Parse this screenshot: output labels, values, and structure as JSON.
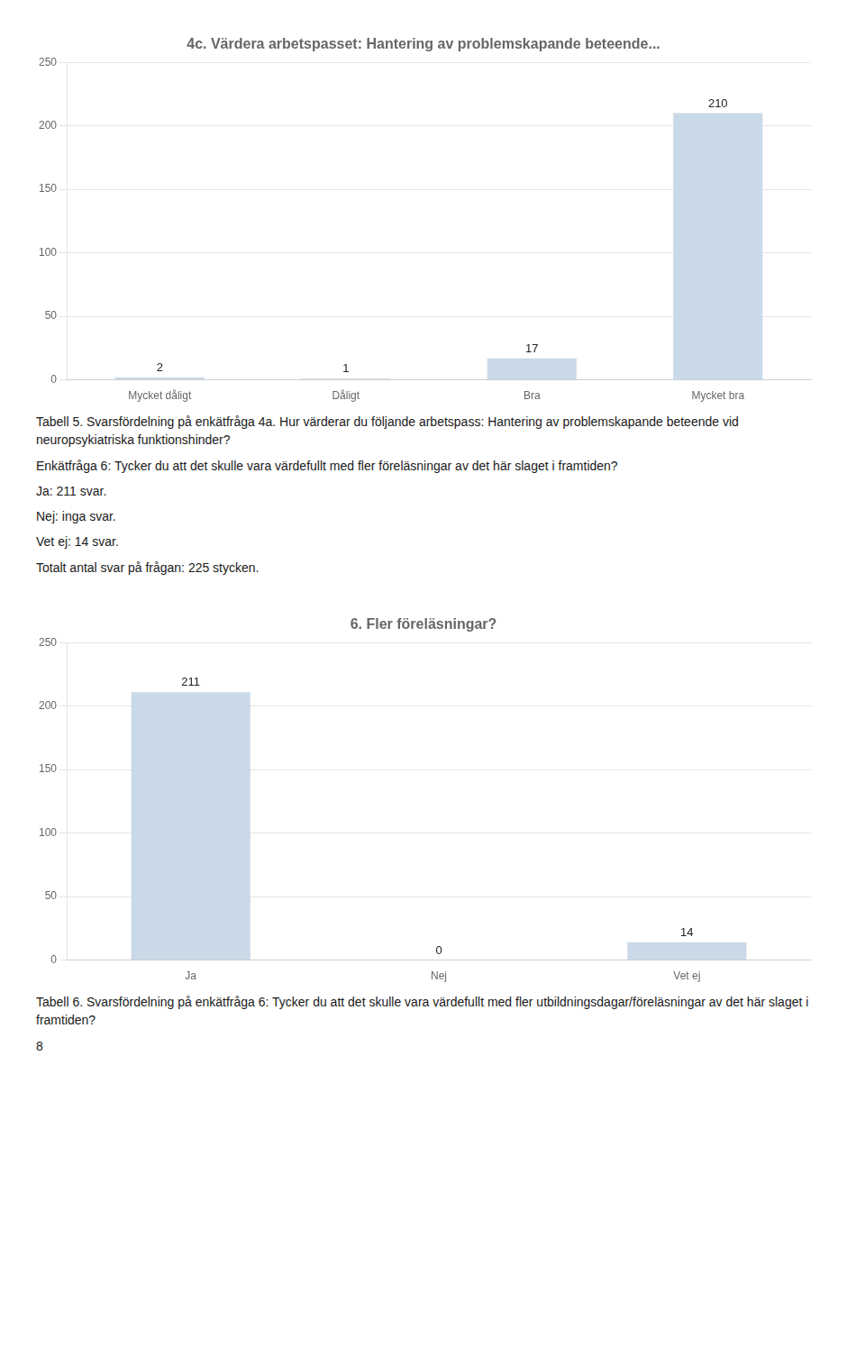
{
  "chart_data": [
    {
      "type": "bar",
      "title": "4c. Värdera arbetspasset: Hantering av problemskapande beteende...",
      "categories": [
        "Mycket dåligt",
        "Dåligt",
        "Bra",
        "Mycket bra"
      ],
      "values": [
        2,
        1,
        17,
        210
      ],
      "color": "#c9d9e8",
      "ylim": [
        0,
        250
      ],
      "yticks": [
        0,
        50,
        100,
        150,
        200,
        250
      ],
      "grid": true,
      "data_labels": true,
      "annotations": [
        "Tabell 5. Svarsfördelning på enkätfråga 4a. Hur värderar du följande arbetspass: Hantering av problemskapande beteende vid neuropsykiatriska funktionshinder?",
        "Enkätfråga 6: Tycker du att det skulle vara värdefullt med fler föreläsningar av det här slaget i framtiden?",
        "Ja: 211 svar.",
        "Nej: inga svar.",
        "Vet ej: 14 svar.",
        "Totalt antal svar på frågan: 225 stycken."
      ]
    },
    {
      "type": "bar",
      "title": "6. Fler föreläsningar?",
      "categories": [
        "Ja",
        "Nej",
        "Vet ej"
      ],
      "values": [
        211,
        0,
        14
      ],
      "color": "#c9d9e8",
      "ylim": [
        0,
        250
      ],
      "yticks": [
        0,
        50,
        100,
        150,
        200,
        250
      ],
      "grid": true,
      "data_labels": true,
      "annotations": [
        "Tabell 6. Svarsfördelning på enkätfråga 6: Tycker du att det skulle vara värdefullt med fler utbildningsdagar/föreläsningar av det här slaget i framtiden?",
        "8"
      ]
    }
  ]
}
